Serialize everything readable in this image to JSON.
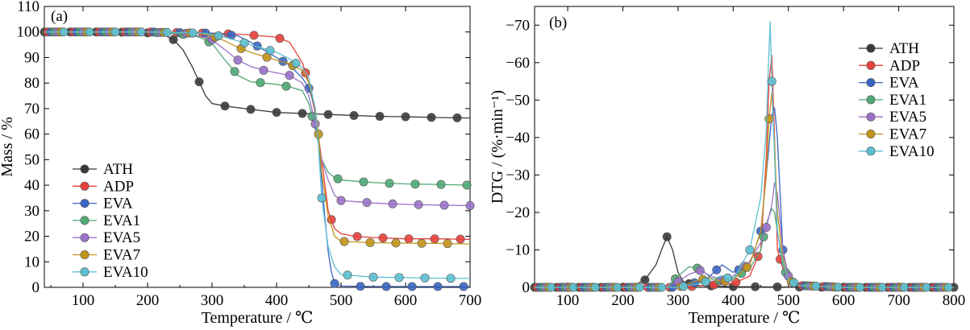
{
  "chart_data": [
    {
      "type": "line",
      "panel_label": "(a)",
      "xlabel": "Temperature / ℃",
      "ylabel": "Mass / %",
      "xlim": [
        40,
        700
      ],
      "ylim": [
        0,
        110
      ],
      "xticks": [
        100,
        200,
        300,
        400,
        500,
        600,
        700
      ],
      "yticks": [
        0,
        10,
        20,
        30,
        40,
        50,
        60,
        70,
        80,
        90,
        100,
        110
      ],
      "legend_position": "bottom-left",
      "grid": false,
      "series": [
        {
          "name": "ATH",
          "color": "#3a3a3a",
          "x": [
            40,
            150,
            220,
            240,
            255,
            270,
            280,
            290,
            300,
            320,
            350,
            400,
            450,
            500,
            550,
            600,
            650,
            700
          ],
          "y": [
            100,
            100,
            99.5,
            97,
            93,
            86,
            80.5,
            75,
            72,
            71,
            70,
            68.5,
            68,
            67.5,
            67,
            66.8,
            66.5,
            66.3
          ]
        },
        {
          "name": "ADP",
          "color": "#e8413c",
          "x": [
            40,
            200,
            300,
            350,
            400,
            420,
            440,
            450,
            460,
            470,
            480,
            490,
            500,
            520,
            550,
            600,
            650,
            700
          ],
          "y": [
            100,
            100,
            99.5,
            99,
            98,
            96,
            88,
            80,
            68,
            50,
            30,
            23,
            21,
            20,
            19.5,
            19,
            19,
            18.8
          ]
        },
        {
          "name": "EVA",
          "color": "#3a66c4",
          "x": [
            40,
            200,
            300,
            340,
            360,
            380,
            400,
            420,
            440,
            450,
            460,
            465,
            470,
            475,
            480,
            485,
            490,
            500,
            550,
            600,
            650,
            700
          ],
          "y": [
            100,
            100,
            99.5,
            98.5,
            96,
            93,
            90,
            87,
            82,
            78,
            70,
            58,
            42,
            27,
            14,
            6,
            1.5,
            0.5,
            0.3,
            0.3,
            0.3,
            0.3
          ]
        },
        {
          "name": "EVA1",
          "color": "#4fa874",
          "x": [
            40,
            200,
            260,
            280,
            300,
            320,
            340,
            360,
            380,
            400,
            420,
            440,
            450,
            460,
            470,
            480,
            490,
            500,
            550,
            600,
            650,
            700
          ],
          "y": [
            100,
            100,
            99,
            98,
            95.5,
            89,
            83,
            80.5,
            80,
            79.5,
            78.5,
            77,
            72,
            62,
            50,
            45,
            43,
            42,
            41,
            40.5,
            40.3,
            40
          ]
        },
        {
          "name": "EVA5",
          "color": "#9b72c9",
          "x": [
            40,
            200,
            260,
            300,
            320,
            340,
            360,
            380,
            400,
            420,
            440,
            450,
            460,
            470,
            480,
            490,
            500,
            550,
            600,
            650,
            700
          ],
          "y": [
            100,
            100,
            99.5,
            97,
            93,
            89,
            86.5,
            85,
            84,
            83,
            80,
            75,
            64,
            50,
            42,
            36,
            34,
            33,
            32.5,
            32.2,
            32
          ]
        },
        {
          "name": "EVA7",
          "color": "#c2941a",
          "x": [
            40,
            200,
            280,
            300,
            320,
            340,
            360,
            380,
            400,
            420,
            440,
            450,
            460,
            465,
            470,
            480,
            490,
            500,
            550,
            600,
            650,
            700
          ],
          "y": [
            100,
            100,
            99.5,
            98.5,
            96.5,
            94,
            92,
            90.5,
            89,
            87.5,
            85,
            80,
            70,
            60,
            45,
            28,
            20,
            18,
            17.5,
            17.3,
            17.2,
            17
          ]
        },
        {
          "name": "EVA10",
          "color": "#5cc0d2",
          "x": [
            40,
            200,
            290,
            320,
            340,
            360,
            380,
            400,
            420,
            440,
            450,
            460,
            465,
            470,
            480,
            490,
            500,
            550,
            600,
            650,
            700
          ],
          "y": [
            100,
            100,
            99.5,
            98,
            96.5,
            95,
            93.5,
            92,
            89.5,
            86,
            82,
            70,
            55,
            35,
            16,
            8,
            5,
            4,
            3.8,
            3.6,
            3.5
          ]
        }
      ]
    },
    {
      "type": "line",
      "panel_label": "(b)",
      "xlabel": "Temperature / ℃",
      "ylabel": "DTG / (%·min⁻¹)",
      "y_inverted": true,
      "xlim": [
        40,
        800
      ],
      "ylim": [
        0,
        -75
      ],
      "xticks": [
        100,
        200,
        300,
        400,
        500,
        600,
        700,
        800
      ],
      "yticks": [
        0,
        -10,
        -20,
        -30,
        -40,
        -50,
        -60,
        -70
      ],
      "ytick_labels": [
        "0",
        "−10",
        "−20",
        "−30",
        "−40",
        "−50",
        "−60",
        "−70"
      ],
      "legend_position": "top-right",
      "grid": false,
      "series": [
        {
          "name": "ATH",
          "color": "#3a3a3a",
          "x": [
            40,
            200,
            220,
            240,
            260,
            270,
            280,
            290,
            300,
            310,
            330,
            400,
            600,
            800
          ],
          "y": [
            0,
            0,
            -0.5,
            -2,
            -6,
            -10,
            -13.5,
            -10,
            -4,
            -1.5,
            -0.5,
            -0.2,
            0,
            0
          ]
        },
        {
          "name": "ADP",
          "color": "#e8413c",
          "x": [
            40,
            300,
            400,
            430,
            450,
            460,
            465,
            470,
            475,
            480,
            490,
            500,
            520,
            600,
            800
          ],
          "y": [
            0,
            0,
            -1,
            -3,
            -10,
            -35,
            -55,
            -62,
            -40,
            -10,
            -5,
            -2,
            -0.5,
            0,
            0
          ]
        },
        {
          "name": "EVA",
          "color": "#3a66c4",
          "x": [
            40,
            300,
            350,
            380,
            400,
            430,
            450,
            460,
            470,
            475,
            480,
            485,
            490,
            500,
            520,
            600,
            800
          ],
          "y": [
            0,
            0,
            -2,
            -6,
            -4,
            -6,
            -15,
            -30,
            -46,
            -48,
            -40,
            -25,
            -10,
            -3,
            -0.5,
            0,
            0
          ]
        },
        {
          "name": "EVA1",
          "color": "#4fa874",
          "x": [
            40,
            280,
            300,
            320,
            340,
            360,
            380,
            400,
            430,
            450,
            460,
            470,
            475,
            480,
            490,
            500,
            520,
            600,
            800
          ],
          "y": [
            0,
            0,
            -3,
            -5.5,
            -5,
            -2.5,
            -1.5,
            -2.5,
            -5,
            -10,
            -17,
            -21,
            -20,
            -15,
            -6,
            -2,
            -0.5,
            0,
            0
          ]
        },
        {
          "name": "EVA5",
          "color": "#9b72c9",
          "x": [
            40,
            280,
            300,
            320,
            340,
            360,
            380,
            400,
            430,
            450,
            460,
            470,
            475,
            480,
            490,
            500,
            520,
            600,
            800
          ],
          "y": [
            0,
            0,
            -1.5,
            -3.5,
            -4.5,
            -3,
            -2,
            -3,
            -7,
            -12,
            -16,
            -22,
            -28,
            -25,
            -10,
            -3,
            -0.5,
            0,
            0
          ]
        },
        {
          "name": "EVA7",
          "color": "#c2941a",
          "x": [
            40,
            300,
            320,
            340,
            360,
            380,
            400,
            430,
            450,
            460,
            465,
            470,
            475,
            480,
            490,
            500,
            520,
            600,
            800
          ],
          "y": [
            0,
            0,
            -1,
            -2,
            -2.5,
            -1.5,
            -2,
            -6,
            -15,
            -30,
            -45,
            -52,
            -38,
            -20,
            -8,
            -2,
            -0.5,
            0,
            0
          ]
        },
        {
          "name": "EVA10",
          "color": "#5cc0d2",
          "x": [
            40,
            300,
            340,
            360,
            380,
            400,
            430,
            450,
            460,
            464,
            467,
            470,
            475,
            480,
            490,
            500,
            520,
            600,
            800
          ],
          "y": [
            0,
            0,
            -1,
            -2,
            -3,
            -2,
            -10,
            -24,
            -42,
            -60,
            -71,
            -55,
            -35,
            -15,
            -7,
            -2,
            -0.5,
            0,
            0
          ]
        }
      ]
    }
  ]
}
